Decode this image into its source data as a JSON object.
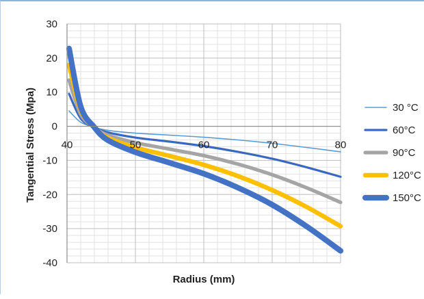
{
  "chart_data": {
    "type": "line",
    "xlabel": "Radius (mm)",
    "ylabel": "Tangential Stress (Mpa)",
    "xlim": [
      40,
      80
    ],
    "ylim": [
      -40,
      30
    ],
    "x_ticks": [
      "40",
      "50",
      "60",
      "70",
      "80"
    ],
    "y_ticks": [
      "30",
      "20",
      "10",
      "0",
      "-10",
      "-20",
      "-30",
      "-40"
    ],
    "grid": true,
    "minor_grid": true,
    "legend_position": "right",
    "series": [
      {
        "name": "30 °C",
        "color": "#5b9bd5",
        "x": [
          40.3,
          42,
          44,
          46,
          50,
          55,
          60,
          65,
          70,
          75,
          80
        ],
        "y": [
          4.5,
          1.2,
          -0.3,
          -1.2,
          -2.0,
          -2.6,
          -3.2,
          -4.0,
          -5.0,
          -6.2,
          -7.5
        ]
      },
      {
        "name": "60°C",
        "color": "#3a68c0",
        "x": [
          40.3,
          42,
          44,
          46,
          50,
          55,
          60,
          65,
          70,
          75,
          80
        ],
        "y": [
          9.5,
          2.3,
          -0.3,
          -1.8,
          -3.3,
          -4.5,
          -5.8,
          -7.5,
          -9.5,
          -12.0,
          -14.8
        ]
      },
      {
        "name": "90°C",
        "color": "#a5a5a5",
        "x": [
          40.3,
          42,
          44,
          46,
          50,
          55,
          60,
          65,
          70,
          75,
          80
        ],
        "y": [
          13.5,
          3.5,
          -0.3,
          -2.6,
          -4.8,
          -6.7,
          -8.6,
          -11.1,
          -14.2,
          -18.0,
          -22.3
        ]
      },
      {
        "name": "120°C",
        "color": "#ffc000",
        "x": [
          40.3,
          42,
          44,
          46,
          50,
          55,
          60,
          65,
          70,
          75,
          80
        ],
        "y": [
          18.0,
          4.8,
          -0.3,
          -3.4,
          -6.2,
          -8.7,
          -11.3,
          -14.6,
          -18.7,
          -23.6,
          -29.3
        ]
      },
      {
        "name": "150°C",
        "color": "#4472c4",
        "x": [
          40.3,
          42,
          44,
          46,
          50,
          55,
          60,
          65,
          70,
          75,
          80
        ],
        "y": [
          22.8,
          5.8,
          -0.3,
          -4.1,
          -7.6,
          -10.7,
          -13.9,
          -18.0,
          -23.0,
          -29.3,
          -36.5
        ]
      }
    ]
  }
}
